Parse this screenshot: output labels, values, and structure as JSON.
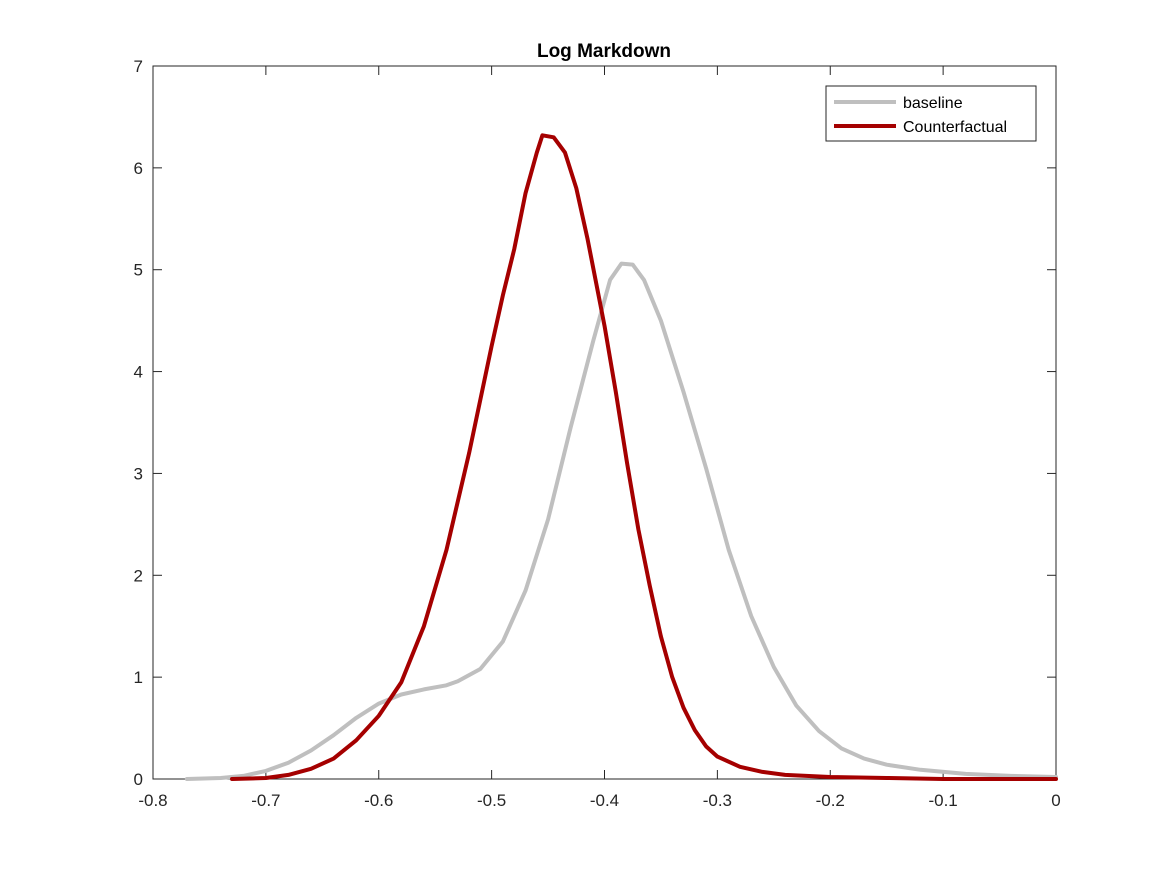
{
  "chart_data": {
    "type": "line",
    "title": "Log Markdown",
    "xlabel": "",
    "ylabel": "",
    "xlim": [
      -0.8,
      0
    ],
    "ylim": [
      0,
      7
    ],
    "xticks": [
      -0.8,
      -0.7,
      -0.6,
      -0.5,
      -0.4,
      -0.3,
      -0.2,
      -0.1,
      0
    ],
    "yticks": [
      0,
      1,
      2,
      3,
      4,
      5,
      6,
      7
    ],
    "xtick_labels": [
      "-0.8",
      "-0.7",
      "-0.6",
      "-0.5",
      "-0.4",
      "-0.3",
      "-0.2",
      "-0.1",
      "0"
    ],
    "ytick_labels": [
      "0",
      "1",
      "2",
      "3",
      "4",
      "5",
      "6",
      "7"
    ],
    "grid": false,
    "legend_position": "top-right",
    "series": [
      {
        "name": "baseline",
        "color": "#bfbfbf",
        "points": [
          [
            -0.77,
            0.0
          ],
          [
            -0.74,
            0.01
          ],
          [
            -0.72,
            0.03
          ],
          [
            -0.7,
            0.08
          ],
          [
            -0.68,
            0.16
          ],
          [
            -0.66,
            0.28
          ],
          [
            -0.64,
            0.43
          ],
          [
            -0.62,
            0.6
          ],
          [
            -0.6,
            0.74
          ],
          [
            -0.58,
            0.83
          ],
          [
            -0.56,
            0.88
          ],
          [
            -0.54,
            0.92
          ],
          [
            -0.53,
            0.96
          ],
          [
            -0.51,
            1.08
          ],
          [
            -0.49,
            1.35
          ],
          [
            -0.47,
            1.85
          ],
          [
            -0.45,
            2.55
          ],
          [
            -0.43,
            3.45
          ],
          [
            -0.41,
            4.3
          ],
          [
            -0.395,
            4.9
          ],
          [
            -0.385,
            5.06
          ],
          [
            -0.375,
            5.05
          ],
          [
            -0.365,
            4.9
          ],
          [
            -0.35,
            4.5
          ],
          [
            -0.33,
            3.8
          ],
          [
            -0.31,
            3.05
          ],
          [
            -0.29,
            2.25
          ],
          [
            -0.27,
            1.6
          ],
          [
            -0.25,
            1.1
          ],
          [
            -0.23,
            0.72
          ],
          [
            -0.21,
            0.47
          ],
          [
            -0.19,
            0.3
          ],
          [
            -0.17,
            0.2
          ],
          [
            -0.15,
            0.14
          ],
          [
            -0.12,
            0.09
          ],
          [
            -0.08,
            0.05
          ],
          [
            -0.04,
            0.03
          ],
          [
            0.0,
            0.02
          ]
        ]
      },
      {
        "name": "Counterfactual",
        "color": "#a50000",
        "points": [
          [
            -0.73,
            0.0
          ],
          [
            -0.7,
            0.01
          ],
          [
            -0.68,
            0.04
          ],
          [
            -0.66,
            0.1
          ],
          [
            -0.64,
            0.2
          ],
          [
            -0.62,
            0.38
          ],
          [
            -0.6,
            0.62
          ],
          [
            -0.58,
            0.95
          ],
          [
            -0.56,
            1.5
          ],
          [
            -0.54,
            2.25
          ],
          [
            -0.52,
            3.2
          ],
          [
            -0.5,
            4.25
          ],
          [
            -0.49,
            4.75
          ],
          [
            -0.48,
            5.2
          ],
          [
            -0.47,
            5.75
          ],
          [
            -0.46,
            6.15
          ],
          [
            -0.455,
            6.32
          ],
          [
            -0.445,
            6.3
          ],
          [
            -0.435,
            6.15
          ],
          [
            -0.425,
            5.8
          ],
          [
            -0.415,
            5.3
          ],
          [
            -0.4,
            4.45
          ],
          [
            -0.39,
            3.8
          ],
          [
            -0.38,
            3.1
          ],
          [
            -0.37,
            2.45
          ],
          [
            -0.36,
            1.9
          ],
          [
            -0.35,
            1.4
          ],
          [
            -0.34,
            1.0
          ],
          [
            -0.33,
            0.7
          ],
          [
            -0.32,
            0.48
          ],
          [
            -0.31,
            0.32
          ],
          [
            -0.3,
            0.22
          ],
          [
            -0.28,
            0.12
          ],
          [
            -0.26,
            0.07
          ],
          [
            -0.24,
            0.04
          ],
          [
            -0.2,
            0.02
          ],
          [
            -0.15,
            0.01
          ],
          [
            -0.1,
            0.0
          ],
          [
            0.0,
            0.0
          ]
        ]
      }
    ]
  }
}
